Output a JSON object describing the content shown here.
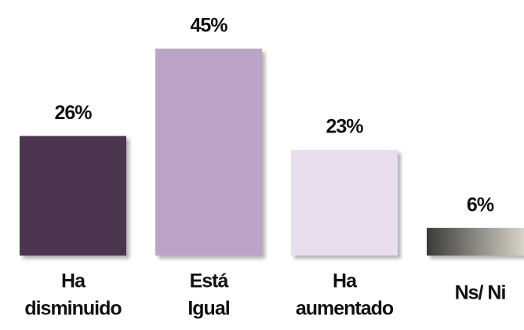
{
  "chart_data": {
    "type": "bar",
    "categories": [
      [
        "Ha",
        "disminuido"
      ],
      [
        "Está",
        "Igual"
      ],
      [
        "Ha",
        "aumentado"
      ],
      [
        "Ns/ Ni"
      ]
    ],
    "values": [
      26,
      45,
      23,
      6
    ],
    "value_labels": [
      "26%",
      "45%",
      "23%",
      "6%"
    ],
    "colors": [
      "#4b3450",
      "#bba4c8",
      "#e9deee",
      [
        "#3a3a3a",
        "#e6e3d6"
      ]
    ]
  }
}
